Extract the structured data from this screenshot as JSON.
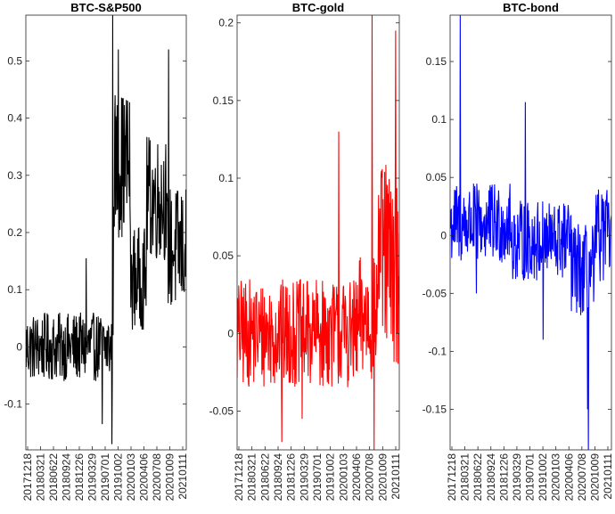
{
  "chart_data": [
    {
      "type": "line",
      "title": "BTC-S&P500",
      "color": "#000000",
      "ylim": [
        -0.18,
        0.58
      ],
      "yticks": [
        -0.1,
        0,
        0.1,
        0.2,
        0.3,
        0.4,
        0.5
      ],
      "ytick_labels": [
        "-0.1",
        "0",
        "0.1",
        "0.2",
        "0.3",
        "0.4",
        "0.5"
      ],
      "x_tick_labels": [
        "20171218",
        "20180321",
        "20180622",
        "20180924",
        "20181226",
        "20190329",
        "20190701",
        "20191002",
        "20200103",
        "20200406",
        "20200708",
        "20201009",
        "20210111"
      ],
      "n_points": 400,
      "series": [
        {
          "segments": [
            {
              "from": 0,
              "to": 218,
              "mean": 0.0,
              "amp": 0.06
            },
            {
              "from": 218,
              "to": 260,
              "mean": 0.32,
              "amp": 0.13
            },
            {
              "from": 260,
              "to": 300,
              "mean": 0.12,
              "amp": 0.09
            },
            {
              "from": 300,
              "to": 350,
              "mean": 0.26,
              "amp": 0.11
            },
            {
              "from": 350,
              "to": 400,
              "mean": 0.17,
              "amp": 0.11
            }
          ]
        }
      ]
    },
    {
      "type": "line",
      "title": "BTC-gold",
      "color": "#ff0000",
      "ylim": [
        -0.075,
        0.205
      ],
      "yticks": [
        -0.05,
        0,
        0.05,
        0.1,
        0.15,
        0.2
      ],
      "ytick_labels": [
        "-0.05",
        "0",
        "0.05",
        "0.1",
        "0.15",
        "0.2"
      ],
      "x_tick_labels": [
        "20171218",
        "20180321",
        "20180622",
        "20180924",
        "20181226",
        "20190329",
        "20190701",
        "20191002",
        "20200103",
        "20200406",
        "20200708",
        "20201009",
        "20210111"
      ],
      "n_points": 400,
      "series": [
        {
          "segments": [
            {
              "from": 0,
              "to": 300,
              "mean": 0.0,
              "amp": 0.035
            },
            {
              "from": 300,
              "to": 345,
              "mean": 0.01,
              "amp": 0.04
            },
            {
              "from": 345,
              "to": 375,
              "mean": 0.05,
              "amp": 0.06
            },
            {
              "from": 375,
              "to": 400,
              "mean": 0.04,
              "amp": 0.06
            }
          ]
        }
      ]
    },
    {
      "type": "line",
      "title": "BTC-bond",
      "color": "#0000ff",
      "ylim": [
        -0.185,
        0.19
      ],
      "yticks": [
        -0.15,
        -0.1,
        -0.05,
        0,
        0.05,
        0.1,
        0.15
      ],
      "ytick_labels": [
        "-0.15",
        "-0.1",
        "-0.05",
        "0",
        "0.05",
        "0.1",
        "0.15"
      ],
      "x_tick_labels": [
        "20171218",
        "20180321",
        "20180622",
        "20180924",
        "20181226",
        "20190329",
        "20190701",
        "20191002",
        "20200103",
        "20200406",
        "20200708",
        "20201009",
        "20210111"
      ],
      "n_points": 400,
      "series": [
        {
          "segments": [
            {
              "from": 0,
              "to": 150,
              "mean": 0.01,
              "amp": 0.035
            },
            {
              "from": 150,
              "to": 300,
              "mean": -0.005,
              "amp": 0.035
            },
            {
              "from": 300,
              "to": 360,
              "mean": -0.03,
              "amp": 0.04
            },
            {
              "from": 360,
              "to": 400,
              "mean": 0.0,
              "amp": 0.04
            }
          ]
        }
      ]
    }
  ]
}
